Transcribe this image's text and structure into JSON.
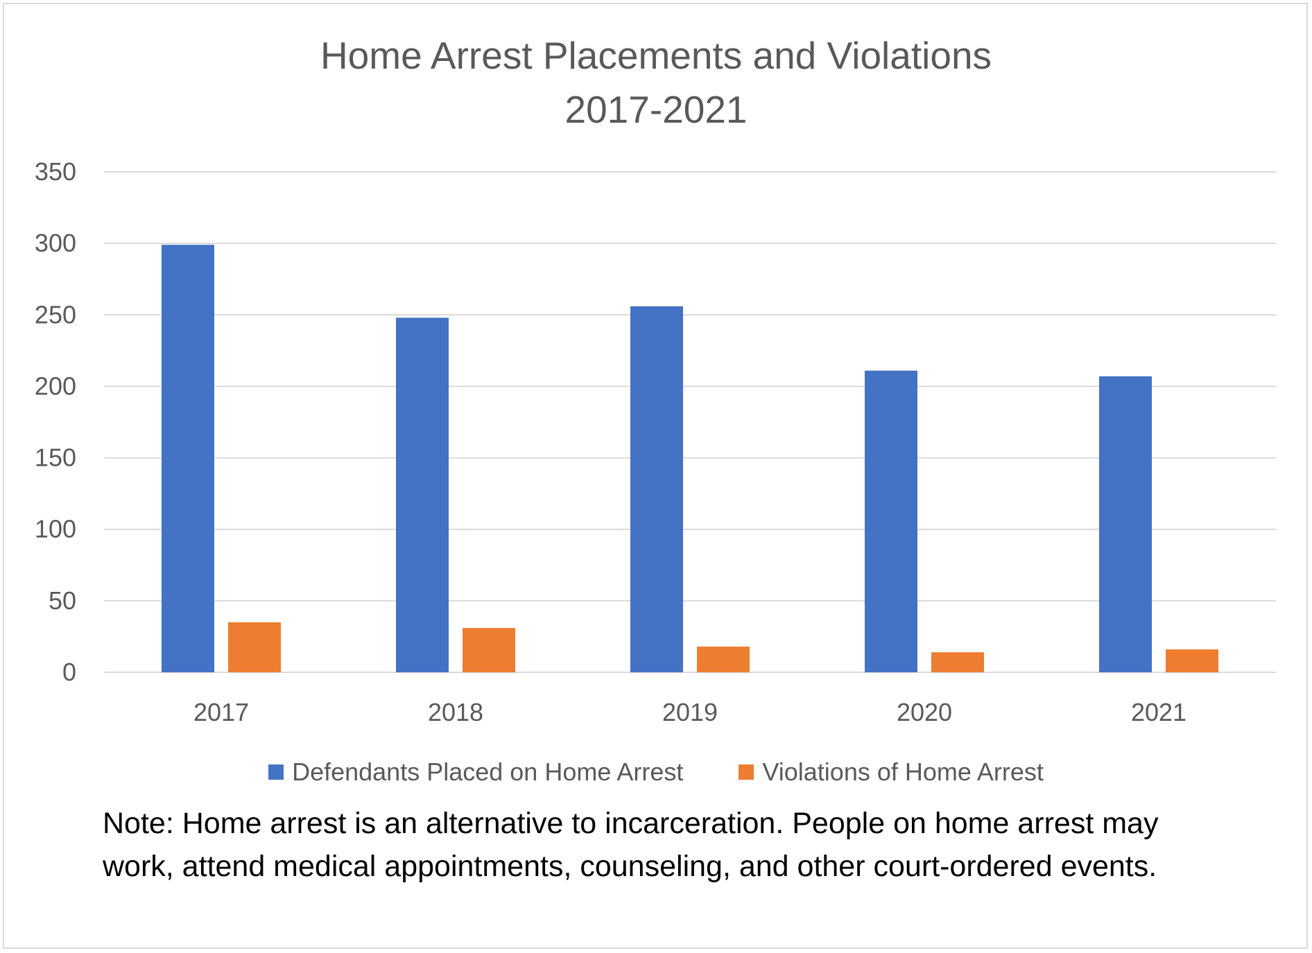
{
  "chart_data": {
    "type": "bar",
    "title_lines": [
      "Home Arrest Placements and Violations",
      "2017-2021"
    ],
    "categories": [
      "2017",
      "2018",
      "2019",
      "2020",
      "2021"
    ],
    "series": [
      {
        "name": "Defendants Placed on Home Arrest",
        "color": "#4472C4",
        "values": [
          299,
          248,
          256,
          211,
          207
        ]
      },
      {
        "name": "Violations of Home Arrest",
        "color": "#ED7D31",
        "values": [
          35,
          31,
          18,
          14,
          16
        ]
      }
    ],
    "ylim": [
      0,
      350
    ],
    "yticks": [
      0,
      50,
      100,
      150,
      200,
      250,
      300,
      350
    ],
    "grid": true,
    "legend_position": "bottom"
  },
  "note_lines": [
    "Note: Home arrest is an alternative to incarceration. People on home arrest may",
    "work, attend medical appointments, counseling, and other court-ordered events."
  ]
}
